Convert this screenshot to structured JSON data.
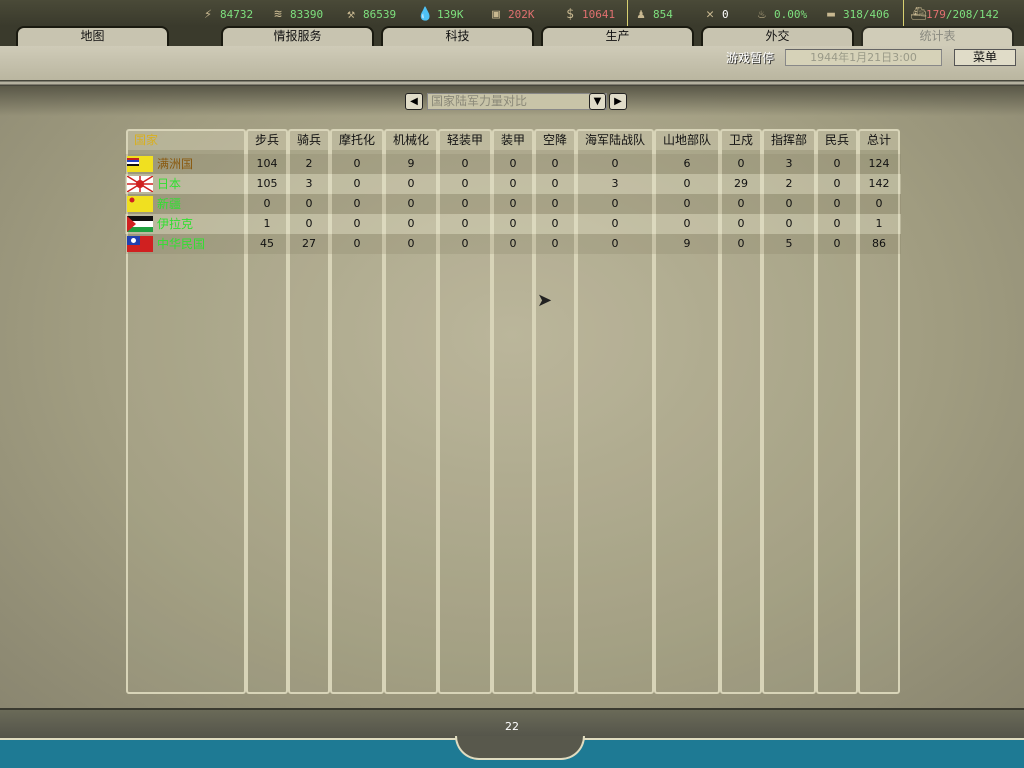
{
  "resources": [
    {
      "icon": "energy-icon",
      "value": "84732",
      "color": "#7ee07e"
    },
    {
      "icon": "metal-icon",
      "value": "83390",
      "color": "#7ee07e"
    },
    {
      "icon": "rare-materials-icon",
      "value": "86539",
      "color": "#7ee07e"
    },
    {
      "icon": "oil-icon",
      "value": "139K",
      "color": "#7ee07e"
    },
    {
      "icon": "supplies-icon",
      "value": "202K",
      "color": "#e07070"
    },
    {
      "icon": "money-icon",
      "value": "10641",
      "color": "#e07070"
    },
    {
      "icon": "manpower-icon",
      "value": "854",
      "color": "#7ee07e"
    },
    {
      "icon": "nuclear-icon",
      "value": "0",
      "color": "#ffffff"
    },
    {
      "icon": "dissent-icon",
      "value": "0.00%",
      "color": "#7ee07e"
    },
    {
      "icon": "transport-icon",
      "value": "318/406",
      "color": "#7ee07e"
    },
    {
      "icon": "convoy-icon",
      "value_red": "179",
      "value": "/208/142",
      "color": "#7ee07e"
    }
  ],
  "tabs": [
    {
      "label": "地图"
    },
    {
      "label": "情报服务"
    },
    {
      "label": "科技"
    },
    {
      "label": "生产"
    },
    {
      "label": "外交"
    },
    {
      "label": "统计表",
      "active": true
    }
  ],
  "status": {
    "paused": "游戏暂停",
    "date": "1944年1月21日3:00",
    "menu": "菜单"
  },
  "selector": {
    "value": "国家陆军力量对比"
  },
  "table": {
    "headers": [
      "国家",
      "步兵",
      "骑兵",
      "摩托化",
      "机械化",
      "轻装甲",
      "装甲",
      "空降",
      "海军陆战队",
      "山地部队",
      "卫戍",
      "指挥部",
      "民兵",
      "总计"
    ],
    "rows": [
      {
        "country": "满洲国",
        "color": "#8a5a10",
        "flag": "manchukuo",
        "values": [
          "104",
          "2",
          "0",
          "9",
          "0",
          "0",
          "0",
          "0",
          "6",
          "0",
          "3",
          "0",
          "124"
        ]
      },
      {
        "country": "日本",
        "color": "#30e030",
        "flag": "japan",
        "values": [
          "105",
          "3",
          "0",
          "0",
          "0",
          "0",
          "0",
          "3",
          "0",
          "29",
          "2",
          "0",
          "142"
        ]
      },
      {
        "country": "新疆",
        "color": "#30e030",
        "flag": "xinjiang",
        "values": [
          "0",
          "0",
          "0",
          "0",
          "0",
          "0",
          "0",
          "0",
          "0",
          "0",
          "0",
          "0",
          "0"
        ]
      },
      {
        "country": "伊拉克",
        "color": "#30e030",
        "flag": "iraq",
        "values": [
          "1",
          "0",
          "0",
          "0",
          "0",
          "0",
          "0",
          "0",
          "0",
          "0",
          "0",
          "0",
          "1"
        ]
      },
      {
        "country": "中华民国",
        "color": "#30e030",
        "flag": "china",
        "values": [
          "45",
          "27",
          "0",
          "0",
          "0",
          "0",
          "0",
          "0",
          "9",
          "0",
          "5",
          "0",
          "86"
        ]
      }
    ]
  },
  "footer": {
    "page": "22"
  },
  "colors": {
    "header_country": "#d8b020",
    "water": "#1e7a94"
  }
}
